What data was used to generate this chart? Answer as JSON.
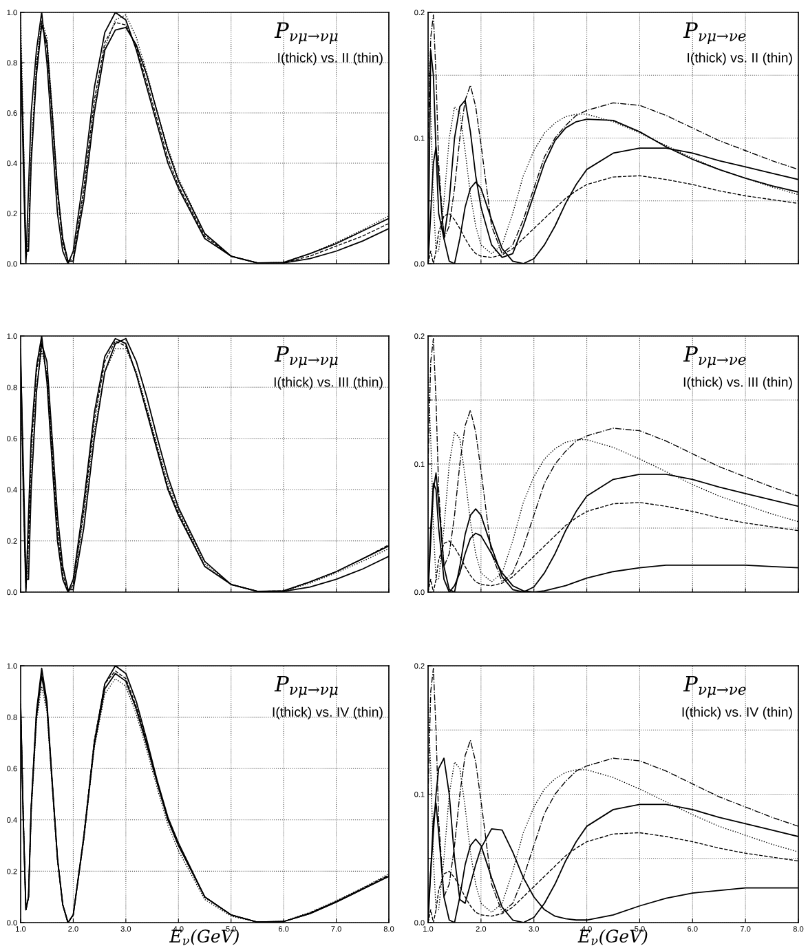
{
  "chart_data": [
    {
      "type": "line",
      "annotations": [
        "P$_{νμ→νμ}$",
        "I(thick) vs. II (thin)"
      ],
      "tick_labels": "y",
      "grid": true,
      "xlim": [
        1.0,
        8.0
      ],
      "ylim": [
        0.0,
        1.0
      ],
      "xticks": [
        1.0,
        2.0,
        3.0,
        4.0,
        5.0,
        6.0,
        7.0,
        8.0
      ],
      "yticks": [
        {
          "value": 0,
          "label": "0.0"
        },
        0.2,
        0.4,
        0.6,
        0.8,
        {
          "value": 1,
          "label": "1.0"
        }
      ],
      "x": [
        1.0,
        1.05,
        1.1,
        1.15,
        1.2,
        1.3,
        1.4,
        1.5,
        1.6,
        1.7,
        1.8,
        1.9,
        2.0,
        2.2,
        2.4,
        2.6,
        2.8,
        3.0,
        3.2,
        3.4,
        3.6,
        3.8,
        4.0,
        4.5,
        5.0,
        5.5,
        6.0,
        6.5,
        7.0,
        7.5,
        8.0
      ],
      "series": [
        {
          "color": "#000000",
          "line_style": "solid",
          "values": [
            0.9,
            0.4,
            0.0,
            0.3,
            0.6,
            0.85,
            1.0,
            0.8,
            0.5,
            0.2,
            0.05,
            0.0,
            0.05,
            0.35,
            0.7,
            0.92,
            1.0,
            0.97,
            0.85,
            0.7,
            0.55,
            0.4,
            0.3,
            0.1,
            0.03,
            0.003,
            0.005,
            0.04,
            0.08,
            0.13,
            0.18
          ]
        },
        {
          "color": "#000000",
          "line_style": "solid",
          "values": [
            0.85,
            0.5,
            0.05,
            0.05,
            0.4,
            0.75,
            0.95,
            0.88,
            0.6,
            0.3,
            0.1,
            0.01,
            0.01,
            0.25,
            0.6,
            0.85,
            0.93,
            0.94,
            0.87,
            0.75,
            0.6,
            0.45,
            0.33,
            0.12,
            0.03,
            0.003,
            0.003,
            0.02,
            0.05,
            0.09,
            0.14
          ]
        },
        {
          "color": "#000000",
          "line_style": "dotted",
          "values": [
            1.0,
            0.55,
            0.05,
            0.1,
            0.45,
            0.8,
            0.97,
            0.9,
            0.62,
            0.3,
            0.1,
            0.01,
            0.01,
            0.28,
            0.62,
            0.86,
            0.97,
            0.99,
            0.9,
            0.76,
            0.6,
            0.46,
            0.34,
            0.12,
            0.03,
            0.003,
            0.005,
            0.04,
            0.085,
            0.135,
            0.19
          ]
        },
        {
          "color": "#000000",
          "line_style": "dashed",
          "values": [
            0.8,
            0.45,
            0.02,
            0.08,
            0.42,
            0.78,
            0.96,
            0.86,
            0.58,
            0.28,
            0.08,
            0.01,
            0.02,
            0.3,
            0.65,
            0.88,
            0.96,
            0.95,
            0.86,
            0.72,
            0.57,
            0.42,
            0.31,
            0.11,
            0.03,
            0.003,
            0.004,
            0.03,
            0.07,
            0.11,
            0.16
          ]
        }
      ]
    },
    {
      "type": "line",
      "annotations": [
        "P$_{νμ→νe}$",
        "I(thick) vs. II (thin)"
      ],
      "tick_labels": "y",
      "grid": true,
      "xlim": [
        1.0,
        8.0
      ],
      "ylim": [
        0.0,
        0.2
      ],
      "xticks": [
        1.0,
        2.0,
        3.0,
        4.0,
        5.0,
        6.0,
        7.0,
        8.0
      ],
      "yticks": [
        {
          "value": 0,
          "label": "0.0"
        },
        {
          "value": 0.05,
          "label": null
        },
        0.1,
        {
          "value": 0.15,
          "label": null
        },
        0.2
      ],
      "x": [
        1.0,
        1.05,
        1.1,
        1.15,
        1.2,
        1.3,
        1.4,
        1.5,
        1.6,
        1.7,
        1.8,
        1.9,
        2.0,
        2.2,
        2.4,
        2.6,
        2.8,
        3.0,
        3.2,
        3.4,
        3.6,
        3.8,
        4.0,
        4.5,
        5.0,
        5.5,
        6.0,
        6.5,
        7.0,
        7.5,
        8.0
      ],
      "series": [
        {
          "color": "#000000",
          "line_style": "solid",
          "values": [
            0.0,
            0.17,
            0.15,
            0.09,
            0.04,
            0.02,
            0.05,
            0.1,
            0.125,
            0.13,
            0.105,
            0.07,
            0.045,
            0.015,
            0.005,
            0.008,
            0.03,
            0.055,
            0.08,
            0.098,
            0.108,
            0.113,
            0.115,
            0.114,
            0.105,
            0.093,
            0.083,
            0.075,
            0.068,
            0.062,
            0.057
          ]
        },
        {
          "color": "#000000",
          "line_style": "solid",
          "values": [
            0.0,
            0.04,
            0.08,
            0.093,
            0.07,
            0.02,
            0.002,
            0.0,
            0.02,
            0.045,
            0.06,
            0.065,
            0.06,
            0.035,
            0.012,
            0.002,
            0.0,
            0.004,
            0.015,
            0.03,
            0.048,
            0.063,
            0.075,
            0.088,
            0.092,
            0.092,
            0.088,
            0.082,
            0.077,
            0.072,
            0.067
          ]
        },
        {
          "color": "#000000",
          "line_style": "dashdot",
          "values": [
            0.1,
            0.18,
            0.198,
            0.15,
            0.08,
            0.02,
            0.03,
            0.06,
            0.1,
            0.13,
            0.142,
            0.125,
            0.095,
            0.03,
            0.008,
            0.015,
            0.035,
            0.06,
            0.085,
            0.1,
            0.11,
            0.118,
            0.122,
            0.128,
            0.126,
            0.118,
            0.108,
            0.098,
            0.09,
            0.082,
            0.075
          ]
        },
        {
          "color": "#000000",
          "line_style": "dashed",
          "values": [
            0.0,
            0.01,
            0.0,
            0.01,
            0.025,
            0.038,
            0.04,
            0.035,
            0.028,
            0.02,
            0.013,
            0.008,
            0.006,
            0.005,
            0.007,
            0.012,
            0.02,
            0.028,
            0.036,
            0.044,
            0.052,
            0.058,
            0.063,
            0.069,
            0.07,
            0.067,
            0.063,
            0.058,
            0.054,
            0.051,
            0.048
          ]
        },
        {
          "color": "#000000",
          "line_style": "dotted",
          "values": [
            0.17,
            0.12,
            0.05,
            0.01,
            0.01,
            0.05,
            0.1,
            0.125,
            0.12,
            0.09,
            0.055,
            0.03,
            0.015,
            0.008,
            0.015,
            0.04,
            0.07,
            0.09,
            0.104,
            0.112,
            0.117,
            0.119,
            0.119,
            0.113,
            0.104,
            0.094,
            0.084,
            0.075,
            0.068,
            0.061,
            0.055
          ]
        }
      ]
    },
    {
      "type": "line",
      "annotations": [
        "P$_{νμ→νμ}$",
        "I(thick) vs. III (thin)"
      ],
      "tick_labels": "y",
      "grid": true,
      "xlim": [
        1.0,
        8.0
      ],
      "ylim": [
        0.0,
        1.0
      ],
      "xticks": [
        1.0,
        2.0,
        3.0,
        4.0,
        5.0,
        6.0,
        7.0,
        8.0
      ],
      "yticks": [
        {
          "value": 0,
          "label": "0.0"
        },
        0.2,
        0.4,
        0.6,
        0.8,
        {
          "value": 1,
          "label": "1.0"
        }
      ],
      "x": [
        1.0,
        1.05,
        1.1,
        1.15,
        1.2,
        1.3,
        1.4,
        1.5,
        1.6,
        1.7,
        1.8,
        1.9,
        2.0,
        2.2,
        2.4,
        2.6,
        2.8,
        3.0,
        3.2,
        3.4,
        3.6,
        3.8,
        4.0,
        4.5,
        5.0,
        5.5,
        6.0,
        6.5,
        7.0,
        7.5,
        8.0
      ],
      "series": [
        {
          "color": "#000000",
          "line_style": "solid",
          "values": [
            0.95,
            0.4,
            0.0,
            0.3,
            0.6,
            0.88,
            1.0,
            0.82,
            0.5,
            0.2,
            0.05,
            0.0,
            0.05,
            0.35,
            0.7,
            0.92,
            0.99,
            0.97,
            0.85,
            0.7,
            0.55,
            0.4,
            0.3,
            0.1,
            0.03,
            0.003,
            0.005,
            0.04,
            0.08,
            0.13,
            0.18
          ]
        },
        {
          "color": "#000000",
          "line_style": "solid",
          "values": [
            0.9,
            0.5,
            0.05,
            0.05,
            0.4,
            0.78,
            0.97,
            0.9,
            0.6,
            0.3,
            0.1,
            0.01,
            0.01,
            0.25,
            0.6,
            0.86,
            0.97,
            0.99,
            0.9,
            0.76,
            0.6,
            0.45,
            0.33,
            0.12,
            0.03,
            0.003,
            0.003,
            0.02,
            0.05,
            0.09,
            0.14
          ]
        },
        {
          "color": "#000000",
          "line_style": "dotted",
          "values": [
            0.85,
            0.45,
            0.03,
            0.1,
            0.45,
            0.8,
            0.94,
            0.86,
            0.58,
            0.28,
            0.09,
            0.01,
            0.02,
            0.3,
            0.63,
            0.86,
            0.95,
            0.95,
            0.86,
            0.72,
            0.57,
            0.43,
            0.32,
            0.11,
            0.03,
            0.003,
            0.004,
            0.035,
            0.075,
            0.12,
            0.17
          ]
        },
        {
          "color": "#000000",
          "line_style": "dashed",
          "values": [
            0.9,
            0.42,
            0.01,
            0.2,
            0.55,
            0.86,
            0.98,
            0.84,
            0.54,
            0.24,
            0.07,
            0.0,
            0.03,
            0.32,
            0.67,
            0.9,
            0.98,
            0.96,
            0.85,
            0.71,
            0.56,
            0.41,
            0.31,
            0.1,
            0.03,
            0.003,
            0.005,
            0.04,
            0.08,
            0.13,
            0.185
          ]
        }
      ]
    },
    {
      "type": "line",
      "annotations": [
        "P$_{νμ→νe}$",
        "I(thick) vs. III (thin)"
      ],
      "tick_labels": "y",
      "grid": true,
      "xlim": [
        1.0,
        8.0
      ],
      "ylim": [
        0.0,
        0.2
      ],
      "xticks": [
        1.0,
        2.0,
        3.0,
        4.0,
        5.0,
        6.0,
        7.0,
        8.0
      ],
      "yticks": [
        {
          "value": 0,
          "label": "0.0"
        },
        {
          "value": 0.05,
          "label": null
        },
        0.1,
        {
          "value": 0.15,
          "label": null
        },
        0.2
      ],
      "x": [
        1.0,
        1.05,
        1.1,
        1.15,
        1.2,
        1.3,
        1.4,
        1.5,
        1.6,
        1.7,
        1.8,
        1.9,
        2.0,
        2.2,
        2.4,
        2.6,
        2.8,
        3.0,
        3.2,
        3.4,
        3.6,
        3.8,
        4.0,
        4.5,
        5.0,
        5.5,
        6.0,
        6.5,
        7.0,
        7.5,
        8.0
      ],
      "series": [
        {
          "color": "#000000",
          "line_style": "solid",
          "values": [
            0.0,
            0.04,
            0.08,
            0.093,
            0.07,
            0.02,
            0.002,
            0.0,
            0.02,
            0.045,
            0.06,
            0.065,
            0.06,
            0.035,
            0.012,
            0.002,
            0.0,
            0.004,
            0.015,
            0.03,
            0.048,
            0.063,
            0.075,
            0.088,
            0.092,
            0.092,
            0.088,
            0.082,
            0.077,
            0.072,
            0.067
          ]
        },
        {
          "color": "#000000",
          "line_style": "solid",
          "values": [
            0.0,
            0.05,
            0.085,
            0.08,
            0.05,
            0.01,
            0.0,
            0.005,
            0.015,
            0.03,
            0.042,
            0.046,
            0.044,
            0.03,
            0.015,
            0.005,
            0.001,
            0.0,
            0.001,
            0.003,
            0.005,
            0.008,
            0.011,
            0.016,
            0.019,
            0.021,
            0.021,
            0.021,
            0.021,
            0.02,
            0.019
          ]
        },
        {
          "color": "#000000",
          "line_style": "dashdot",
          "values": [
            0.1,
            0.18,
            0.198,
            0.15,
            0.08,
            0.02,
            0.03,
            0.06,
            0.1,
            0.13,
            0.142,
            0.125,
            0.095,
            0.03,
            0.008,
            0.015,
            0.035,
            0.06,
            0.085,
            0.1,
            0.11,
            0.118,
            0.122,
            0.128,
            0.126,
            0.118,
            0.108,
            0.098,
            0.09,
            0.082,
            0.075
          ]
        },
        {
          "color": "#000000",
          "line_style": "dashed",
          "values": [
            0.0,
            0.01,
            0.0,
            0.01,
            0.025,
            0.038,
            0.04,
            0.035,
            0.028,
            0.02,
            0.013,
            0.008,
            0.006,
            0.005,
            0.007,
            0.012,
            0.02,
            0.028,
            0.036,
            0.044,
            0.052,
            0.058,
            0.063,
            0.069,
            0.07,
            0.067,
            0.063,
            0.058,
            0.054,
            0.051,
            0.048
          ]
        },
        {
          "color": "#000000",
          "line_style": "dotted",
          "values": [
            0.17,
            0.12,
            0.05,
            0.01,
            0.01,
            0.05,
            0.1,
            0.125,
            0.12,
            0.09,
            0.055,
            0.03,
            0.015,
            0.008,
            0.015,
            0.04,
            0.07,
            0.09,
            0.104,
            0.112,
            0.117,
            0.119,
            0.119,
            0.113,
            0.104,
            0.094,
            0.084,
            0.075,
            0.068,
            0.061,
            0.055
          ]
        }
      ]
    },
    {
      "type": "line",
      "annotations": [
        "P$_{νμ→νμ}$",
        "I(thick) vs. IV (thin)"
      ],
      "xlabel": "E$_{ν}$(GeV)",
      "grid": true,
      "xlim": [
        1.0,
        8.0
      ],
      "ylim": [
        0.0,
        1.0
      ],
      "xticks": [
        {
          "value": 1,
          "label": "1.0"
        },
        {
          "value": 2,
          "label": "2.0"
        },
        {
          "value": 3,
          "label": "3.0"
        },
        {
          "value": 4,
          "label": "4.0"
        },
        {
          "value": 5,
          "label": "5.0"
        },
        {
          "value": 6,
          "label": "6.0"
        },
        {
          "value": 7,
          "label": "7.0"
        },
        {
          "value": 8,
          "label": "8.0"
        }
      ],
      "yticks": [
        {
          "value": 0,
          "label": "0.0"
        },
        0.2,
        0.4,
        0.6,
        0.8,
        {
          "value": 1,
          "label": "1.0"
        }
      ],
      "x": [
        1.0,
        1.05,
        1.1,
        1.15,
        1.2,
        1.3,
        1.4,
        1.5,
        1.6,
        1.7,
        1.8,
        1.9,
        2.0,
        2.2,
        2.4,
        2.6,
        2.8,
        3.0,
        3.2,
        3.4,
        3.6,
        3.8,
        4.0,
        4.5,
        5.0,
        5.5,
        6.0,
        6.5,
        7.0,
        7.5,
        8.0
      ],
      "series": [
        {
          "color": "#000000",
          "line_style": "solid",
          "values": [
            0.85,
            0.4,
            0.05,
            0.1,
            0.45,
            0.82,
            0.99,
            0.86,
            0.55,
            0.25,
            0.07,
            0.0,
            0.03,
            0.33,
            0.7,
            0.93,
            1.0,
            0.97,
            0.86,
            0.71,
            0.55,
            0.41,
            0.31,
            0.1,
            0.03,
            0.002,
            0.004,
            0.035,
            0.08,
            0.13,
            0.18
          ]
        },
        {
          "color": "#000000",
          "line_style": "solid",
          "values": [
            0.85,
            0.4,
            0.05,
            0.1,
            0.44,
            0.8,
            0.96,
            0.84,
            0.54,
            0.25,
            0.07,
            0.0,
            0.03,
            0.33,
            0.69,
            0.91,
            0.97,
            0.94,
            0.83,
            0.69,
            0.54,
            0.4,
            0.3,
            0.1,
            0.03,
            0.002,
            0.004,
            0.035,
            0.08,
            0.13,
            0.18
          ]
        },
        {
          "color": "#000000",
          "line_style": "dotted",
          "values": [
            0.85,
            0.42,
            0.05,
            0.1,
            0.42,
            0.78,
            0.92,
            0.82,
            0.53,
            0.24,
            0.07,
            0.0,
            0.03,
            0.32,
            0.68,
            0.89,
            0.95,
            0.92,
            0.81,
            0.67,
            0.52,
            0.38,
            0.28,
            0.09,
            0.025,
            0.002,
            0.005,
            0.04,
            0.085,
            0.135,
            0.19
          ]
        },
        {
          "color": "#000000",
          "line_style": "dashed",
          "values": [
            0.85,
            0.41,
            0.05,
            0.1,
            0.45,
            0.82,
            0.97,
            0.85,
            0.55,
            0.25,
            0.07,
            0.0,
            0.03,
            0.34,
            0.71,
            0.93,
            0.98,
            0.95,
            0.84,
            0.7,
            0.54,
            0.4,
            0.3,
            0.1,
            0.03,
            0.002,
            0.004,
            0.038,
            0.083,
            0.133,
            0.185
          ]
        }
      ]
    },
    {
      "type": "line",
      "annotations": [
        "P$_{νμ→νe}$",
        "I(thick) vs. IV (thin)"
      ],
      "xlabel": "E$_{ν}$(GeV)",
      "grid": true,
      "xlim": [
        1.0,
        8.0
      ],
      "ylim": [
        0.0,
        0.2
      ],
      "xticks": [
        {
          "value": 1,
          "label": "1.0"
        },
        {
          "value": 2,
          "label": "2.0"
        },
        {
          "value": 3,
          "label": "3.0"
        },
        {
          "value": 4,
          "label": "4.0"
        },
        {
          "value": 5,
          "label": "5.0"
        },
        {
          "value": 6,
          "label": "6.0"
        },
        {
          "value": 7,
          "label": "7.0"
        },
        {
          "value": 8,
          "label": "8.0"
        }
      ],
      "yticks": [
        {
          "value": 0,
          "label": "0.0"
        },
        {
          "value": 0.05,
          "label": null
        },
        0.1,
        {
          "value": 0.15,
          "label": null
        },
        0.2
      ],
      "x": [
        1.0,
        1.05,
        1.1,
        1.15,
        1.2,
        1.3,
        1.4,
        1.5,
        1.6,
        1.7,
        1.8,
        1.9,
        2.0,
        2.2,
        2.4,
        2.6,
        2.8,
        3.0,
        3.2,
        3.4,
        3.6,
        3.8,
        4.0,
        4.5,
        5.0,
        5.5,
        6.0,
        6.5,
        7.0,
        7.5,
        8.0
      ],
      "series": [
        {
          "color": "#000000",
          "line_style": "solid",
          "values": [
            0.0,
            0.04,
            0.08,
            0.093,
            0.07,
            0.02,
            0.002,
            0.0,
            0.02,
            0.045,
            0.06,
            0.065,
            0.06,
            0.035,
            0.012,
            0.002,
            0.0,
            0.004,
            0.015,
            0.03,
            0.048,
            0.063,
            0.075,
            0.088,
            0.092,
            0.092,
            0.088,
            0.082,
            0.077,
            0.072,
            0.067
          ]
        },
        {
          "color": "#000000",
          "line_style": "solid",
          "values": [
            0.01,
            0.04,
            0.07,
            0.1,
            0.12,
            0.128,
            0.1,
            0.05,
            0.018,
            0.015,
            0.03,
            0.045,
            0.058,
            0.073,
            0.072,
            0.055,
            0.035,
            0.02,
            0.01,
            0.005,
            0.003,
            0.002,
            0.002,
            0.006,
            0.013,
            0.019,
            0.023,
            0.025,
            0.027,
            0.027,
            0.027
          ]
        },
        {
          "color": "#000000",
          "line_style": "dashdot",
          "values": [
            0.1,
            0.18,
            0.198,
            0.15,
            0.08,
            0.02,
            0.03,
            0.06,
            0.1,
            0.13,
            0.142,
            0.125,
            0.095,
            0.03,
            0.008,
            0.015,
            0.035,
            0.06,
            0.085,
            0.1,
            0.11,
            0.118,
            0.122,
            0.128,
            0.126,
            0.118,
            0.108,
            0.098,
            0.09,
            0.082,
            0.075
          ]
        },
        {
          "color": "#000000",
          "line_style": "dashed",
          "values": [
            0.0,
            0.01,
            0.0,
            0.01,
            0.025,
            0.038,
            0.04,
            0.035,
            0.028,
            0.02,
            0.013,
            0.008,
            0.006,
            0.005,
            0.007,
            0.012,
            0.02,
            0.028,
            0.036,
            0.044,
            0.052,
            0.058,
            0.063,
            0.069,
            0.07,
            0.067,
            0.063,
            0.058,
            0.054,
            0.051,
            0.048
          ]
        },
        {
          "color": "#000000",
          "line_style": "dotted",
          "values": [
            0.17,
            0.12,
            0.05,
            0.01,
            0.01,
            0.05,
            0.1,
            0.125,
            0.12,
            0.09,
            0.055,
            0.03,
            0.015,
            0.008,
            0.015,
            0.04,
            0.07,
            0.09,
            0.104,
            0.112,
            0.117,
            0.119,
            0.119,
            0.113,
            0.104,
            0.094,
            0.084,
            0.075,
            0.068,
            0.061,
            0.055
          ]
        }
      ]
    }
  ]
}
